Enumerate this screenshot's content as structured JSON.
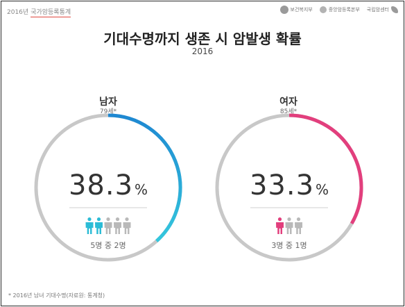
{
  "header": {
    "year": "2016년",
    "source": "국가암등록통계",
    "logos": [
      "보건복지부",
      "중앙암등록본부",
      "국립암센터"
    ]
  },
  "chart_data": {
    "type": "donut",
    "title": "기대수명까지 생존 시 암발생 확률",
    "subtitle": "2016",
    "series": [
      {
        "name": "남자",
        "age": "79세*",
        "value": 38.3,
        "value_text": "38.3",
        "unit": "%",
        "ratio": "5명 중 2명",
        "people_total": 5,
        "people_highlighted": 2,
        "color": "#1e88d2",
        "color_end": "#34c7dd"
      },
      {
        "name": "여자",
        "age": "85세*",
        "value": 33.3,
        "value_text": "33.3",
        "unit": "%",
        "ratio": "3명 중 1명",
        "people_total": 3,
        "people_highlighted": 1,
        "color": "#e23f7d",
        "color_end": "#d9347a"
      }
    ],
    "track_color": "#c8c8c8",
    "person_inactive_color": "#b9b9b9"
  },
  "footnote": "* 2016년 남녀 기대수명(자료원: 통계청)"
}
